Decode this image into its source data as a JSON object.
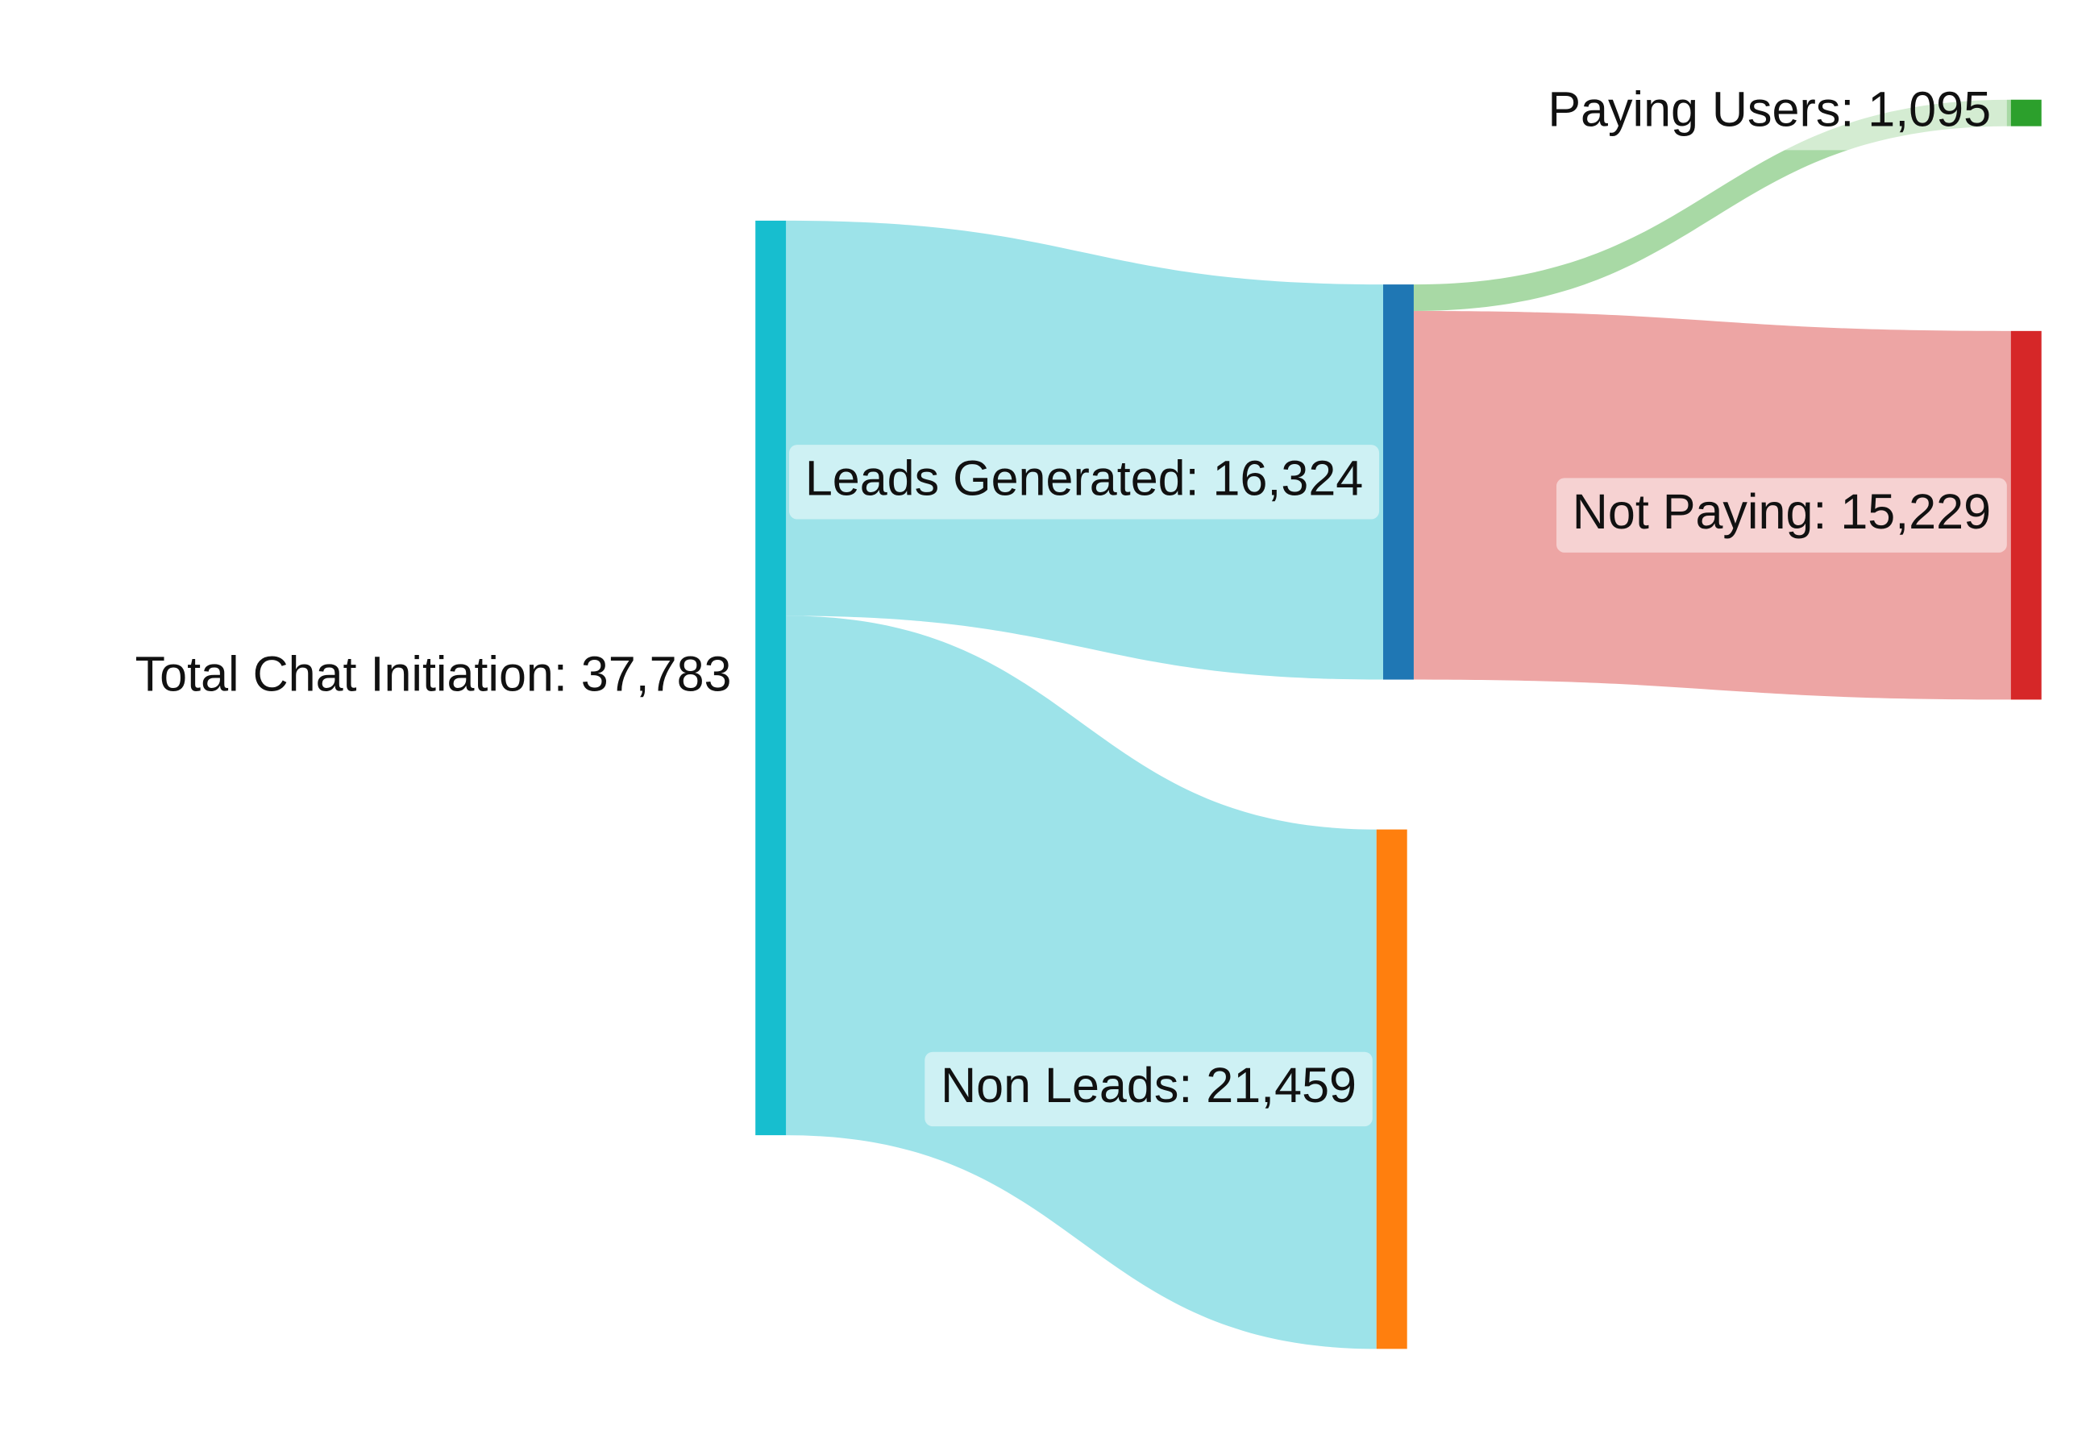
{
  "chart_data": {
    "type": "sankey",
    "nodes": [
      {
        "label": "Total Chat Initiation: 37,783",
        "color": "#17becf"
      },
      {
        "label": "Leads Generated: 16,324",
        "color": "#1f77b4"
      },
      {
        "label": "Non Leads: 21,459",
        "color": "#ff7f0e"
      },
      {
        "label": "Paying Users: 1,095",
        "color": "#2ca02c"
      },
      {
        "label": "Not Paying: 15,229",
        "color": "#d62728"
      }
    ],
    "links": [
      {
        "source": 0,
        "target": 1,
        "value": 16324,
        "color": "#98e2e8"
      },
      {
        "source": 0,
        "target": 2,
        "value": 21459,
        "color": "#98e2e8"
      },
      {
        "source": 1,
        "target": 3,
        "value": 1095,
        "color": "#a3d7a0"
      },
      {
        "source": 1,
        "target": 4,
        "value": 15229,
        "color": "#eca09f"
      }
    ]
  }
}
